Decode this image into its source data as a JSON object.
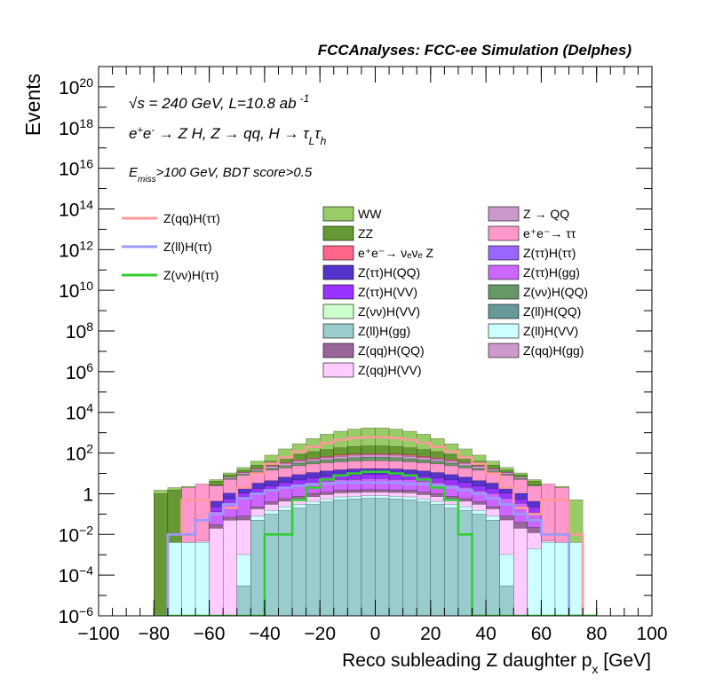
{
  "header": {
    "experiment": "FCCAnalyses: FCC-ee Simulation (Delphes)"
  },
  "annotations": {
    "energy": "√s = 240 GeV, L=10.8 ab",
    "lumi_exp": "-1",
    "process_pre": "e",
    "process_main": " → Z H, Z  → qq, H  → τ",
    "process_sub1": "L",
    "process_tau2": "τ",
    "process_sub2": "h",
    "cut_E": "E",
    "cut_sub": "miss",
    "cut_rest": ">100 GeV, BDT score>0.5"
  },
  "chart_data": {
    "type": "bar",
    "title": "FCCAnalyses: FCC-ee Simulation (Delphes)",
    "xlabel": "Reco subleading Z daughter p",
    "xlabel_sub": "x",
    "xlabel_unit": " [GeV]",
    "ylabel": "Events",
    "xlim": [
      -100,
      100
    ],
    "ylim": [
      1e-06,
      1e+21
    ],
    "log_y": true,
    "stacked": true,
    "bin_width": 5,
    "x_ticks": [
      "−100",
      "−80",
      "−60",
      "−40",
      "−20",
      "0",
      "20",
      "40",
      "60",
      "80",
      "100"
    ],
    "y_ticks": [
      {
        "base": "10",
        "exp": "−6"
      },
      {
        "base": "10",
        "exp": "−4"
      },
      {
        "base": "10",
        "exp": "−2"
      },
      {
        "base": "1",
        "exp": ""
      },
      {
        "base": "10",
        "exp": "2"
      },
      {
        "base": "10",
        "exp": "4"
      },
      {
        "base": "10",
        "exp": "6"
      },
      {
        "base": "10",
        "exp": "8"
      },
      {
        "base": "10",
        "exp": "10"
      },
      {
        "base": "10",
        "exp": "12"
      },
      {
        "base": "10",
        "exp": "14"
      },
      {
        "base": "10",
        "exp": "16"
      },
      {
        "base": "10",
        "exp": "18"
      },
      {
        "base": "10",
        "exp": "20"
      }
    ],
    "legend_signals": [
      {
        "name": "Z(qq)H(ττ)",
        "color": "#ff9999"
      },
      {
        "name": "Z(ll)H(ττ)",
        "color": "#9999ff"
      },
      {
        "name": "Z(νν)H(ττ)",
        "color": "#33cc33"
      }
    ],
    "legend_backgrounds": [
      {
        "name": "WW",
        "color": "#99cc66"
      },
      {
        "name": "Z → QQ",
        "color": "#cc99cc"
      },
      {
        "name": "ZZ",
        "color": "#669933"
      },
      {
        "name": "e⁺e⁻→ ττ",
        "color": "#ff99cc"
      },
      {
        "name": "e⁺e⁻→ νₑνₑ Z",
        "color": "#ff6688"
      },
      {
        "name": "Z(ττ)H(ττ)",
        "color": "#9966ff"
      },
      {
        "name": "Z(ττ)H(QQ)",
        "color": "#5533cc"
      },
      {
        "name": "Z(ττ)H(gg)",
        "color": "#cc66ff"
      },
      {
        "name": "Z(ττ)H(VV)",
        "color": "#9933ff"
      },
      {
        "name": "Z(νν)H(QQ)",
        "color": "#669966"
      },
      {
        "name": "Z(νν)H(VV)",
        "color": "#ccffcc"
      },
      {
        "name": "Z(ll)H(QQ)",
        "color": "#669999"
      },
      {
        "name": "Z(ll)H(gg)",
        "color": "#99cccc"
      },
      {
        "name": "Z(ll)H(VV)",
        "color": "#ccffff"
      },
      {
        "name": "Z(qq)H(QQ)",
        "color": "#996699"
      },
      {
        "name": "Z(qq)H(gg)",
        "color": "#cc99cc"
      },
      {
        "name": "Z(qq)H(VV)",
        "color": "#ffccff"
      }
    ],
    "bin_centers": [
      -77.5,
      -72.5,
      -67.5,
      -62.5,
      -57.5,
      -52.5,
      -47.5,
      -42.5,
      -37.5,
      -32.5,
      -27.5,
      -22.5,
      -17.5,
      -12.5,
      -7.5,
      -2.5,
      2.5,
      7.5,
      12.5,
      17.5,
      22.5,
      27.5,
      32.5,
      37.5,
      42.5,
      47.5,
      52.5,
      57.5,
      62.5,
      67.5,
      72.5,
      77.5
    ],
    "series": [
      {
        "name": "Z(ll)H(gg)",
        "color": "#99cccc",
        "values": [
          0,
          0,
          0,
          0,
          0,
          0,
          3e-05,
          0.05,
          0.1,
          0.15,
          0.2,
          0.3,
          0.4,
          0.5,
          0.55,
          0.6,
          0.6,
          0.55,
          0.5,
          0.4,
          0.3,
          0.2,
          0.15,
          0.1,
          0.05,
          3e-05,
          0,
          0,
          0,
          0,
          0,
          0
        ]
      },
      {
        "name": "Z(ll)H(VV)",
        "color": "#ccffff",
        "values": [
          0,
          0.004,
          0.004,
          0.004,
          0,
          0,
          0.001,
          0.03,
          0.05,
          0.08,
          0.1,
          0.12,
          0.15,
          0.2,
          0.2,
          0.2,
          0.2,
          0.2,
          0.2,
          0.15,
          0.12,
          0.1,
          0.08,
          0.05,
          0.03,
          0.001,
          0,
          0.002,
          0.004,
          0.004,
          0.004,
          0
        ]
      },
      {
        "name": "Z(qq)H(VV)",
        "color": "#ffccff",
        "values": [
          0,
          0,
          0,
          0.001,
          0.02,
          0.05,
          0.05,
          0.1,
          0.15,
          0.2,
          0.25,
          0.3,
          0.35,
          0.4,
          0.4,
          0.4,
          0.4,
          0.4,
          0.4,
          0.35,
          0.3,
          0.25,
          0.2,
          0.15,
          0.1,
          0.05,
          0.02,
          0.01,
          0.001,
          0,
          0,
          0
        ]
      },
      {
        "name": "Z(qq)H(QQ)",
        "color": "#996699",
        "values": [
          0,
          0,
          0,
          3e-05,
          0.01,
          0.02,
          0.03,
          0.05,
          0.1,
          0.15,
          0.2,
          0.3,
          0.3,
          0.4,
          0.4,
          0.4,
          0.4,
          0.4,
          0.4,
          0.3,
          0.3,
          0.2,
          0.15,
          0.1,
          0.05,
          0.03,
          0.02,
          0.01,
          3e-05,
          0,
          0,
          0
        ]
      },
      {
        "name": "Z(ττ)H(gg)",
        "color": "#cc66ff",
        "values": [
          0,
          0,
          0,
          0,
          0.1,
          0.3,
          0.5,
          0.8,
          1,
          1.5,
          2,
          2.5,
          3,
          3.5,
          3.5,
          4,
          4,
          3.5,
          3.5,
          3,
          2.5,
          2,
          1.5,
          1,
          0.8,
          0.5,
          0.3,
          0.1,
          0,
          0,
          0,
          0
        ]
      },
      {
        "name": "Z(ττ)H(VV)",
        "color": "#9933ff",
        "values": [
          0,
          0,
          0,
          0,
          0.1,
          0.2,
          0.5,
          0.8,
          1,
          1.5,
          2,
          2.5,
          3,
          3,
          3.5,
          3.5,
          3.5,
          3.5,
          3,
          3,
          2.5,
          2,
          1.5,
          1,
          0.8,
          0.5,
          0.2,
          0.1,
          0,
          0,
          0,
          0
        ]
      },
      {
        "name": "Z(ττ)H(QQ)",
        "color": "#5533cc",
        "values": [
          0,
          0,
          0,
          0,
          0.2,
          0.5,
          1,
          1.5,
          2,
          3,
          4,
          5,
          6,
          7,
          8,
          8,
          8,
          8,
          7,
          6,
          5,
          4,
          3,
          2,
          1.5,
          1,
          0.5,
          0.2,
          0,
          0,
          0,
          0
        ]
      },
      {
        "name": "e⁺e⁻→ ττ",
        "color": "#ff99cc",
        "values": [
          0,
          0,
          2,
          3,
          2,
          4,
          6,
          8,
          10,
          12,
          15,
          18,
          20,
          22,
          24,
          25,
          25,
          24,
          22,
          20,
          18,
          15,
          12,
          10,
          8,
          6,
          4,
          2,
          3,
          2,
          0,
          0
        ]
      },
      {
        "name": "Z(νν)H(QQ)",
        "color": "#669966",
        "values": [
          0,
          0,
          0,
          0,
          0.2,
          0.5,
          1,
          2,
          3,
          5,
          8,
          10,
          12,
          15,
          18,
          20,
          20,
          18,
          15,
          12,
          10,
          8,
          5,
          3,
          2,
          1,
          0.5,
          0.2,
          0,
          0,
          0,
          0
        ]
      },
      {
        "name": "Z → QQ",
        "color": "#cc99cc",
        "values": [
          0,
          0,
          0,
          0,
          0,
          1,
          2,
          3,
          5,
          8,
          10,
          12,
          15,
          18,
          20,
          20,
          20,
          20,
          18,
          15,
          12,
          10,
          8,
          5,
          3,
          2,
          1,
          0,
          0,
          0,
          0,
          0
        ]
      },
      {
        "name": "e⁺e⁻→ νₑνₑ Z",
        "color": "#ff6688",
        "values": [
          0,
          0,
          0,
          0,
          0,
          0,
          0.5,
          1,
          2,
          3,
          5,
          6,
          8,
          10,
          10,
          12,
          12,
          10,
          10,
          8,
          6,
          5,
          3,
          2,
          1,
          0.5,
          0,
          0,
          0,
          0,
          0,
          0
        ]
      },
      {
        "name": "ZZ",
        "color": "#669933",
        "values": [
          1,
          1.5,
          0,
          0,
          1.5,
          2,
          3,
          8,
          15,
          25,
          40,
          60,
          80,
          100,
          120,
          130,
          130,
          120,
          100,
          80,
          60,
          40,
          25,
          15,
          8,
          3,
          2,
          1.5,
          0,
          0,
          0,
          0
        ]
      },
      {
        "name": "WW",
        "color": "#99cc66",
        "values": [
          0.5,
          0.5,
          0.3,
          0,
          0.8,
          2,
          5,
          15,
          40,
          100,
          200,
          400,
          700,
          1000,
          1300,
          1500,
          1500,
          1300,
          1000,
          700,
          400,
          200,
          100,
          40,
          15,
          5,
          2,
          0.8,
          0,
          0.3,
          0.5,
          0
        ]
      }
    ],
    "signals": [
      {
        "name": "Z(qq)H(ττ)",
        "color": "#ff9999",
        "values": [
          0,
          0.01,
          0.5,
          0.5,
          0.1,
          0.2,
          2,
          10,
          30,
          60,
          120,
          200,
          320,
          450,
          550,
          600,
          600,
          550,
          450,
          320,
          200,
          120,
          60,
          30,
          10,
          2,
          0.2,
          0.1,
          0.5,
          0.5,
          0.01,
          0
        ]
      },
      {
        "name": "Z(ll)H(ττ)",
        "color": "#9999ff",
        "values": [
          0,
          0.01,
          0.01,
          0.05,
          0.1,
          0.3,
          0.6,
          1,
          1.5,
          2,
          2.5,
          3,
          3,
          3.5,
          3.5,
          3.5,
          3.5,
          3.5,
          3,
          3,
          2.5,
          2,
          1.5,
          1,
          0.6,
          0.3,
          0.1,
          0.05,
          0.01,
          0.01,
          0,
          0
        ]
      },
      {
        "name": "Z(νν)H(ττ)",
        "color": "#33cc33",
        "values": [
          0,
          0,
          0,
          0,
          0,
          0,
          0,
          0,
          0.01,
          0.01,
          0.5,
          2,
          5,
          8,
          10,
          12,
          12,
          10,
          8,
          5,
          2,
          0.5,
          0.01,
          0,
          0,
          0,
          0,
          0,
          0,
          0,
          0,
          0
        ]
      }
    ]
  }
}
